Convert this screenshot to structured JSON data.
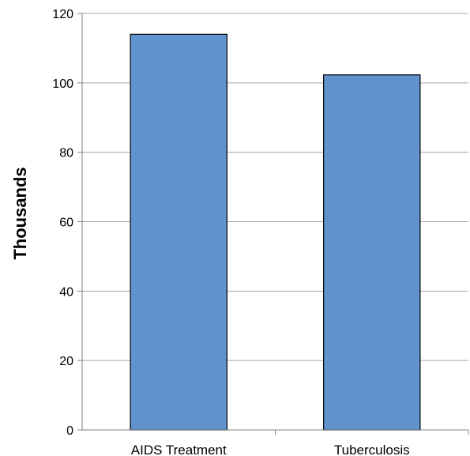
{
  "chart_data": {
    "type": "bar",
    "categories": [
      "AIDS Treatment",
      "Tuberculosis"
    ],
    "values": [
      114,
      102.3
    ],
    "ylabel": "Thousands",
    "xlabel": "",
    "ylim": [
      0,
      120
    ],
    "yticks": [
      0,
      20,
      40,
      60,
      80,
      100,
      120
    ],
    "ytick_labels": [
      "0",
      "20",
      "40",
      "60",
      "80",
      "100",
      "120"
    ],
    "grid": true,
    "bar_color": "#6093cb",
    "bar_edge_color": "#000000",
    "grid_color": "#a6a6a6"
  }
}
